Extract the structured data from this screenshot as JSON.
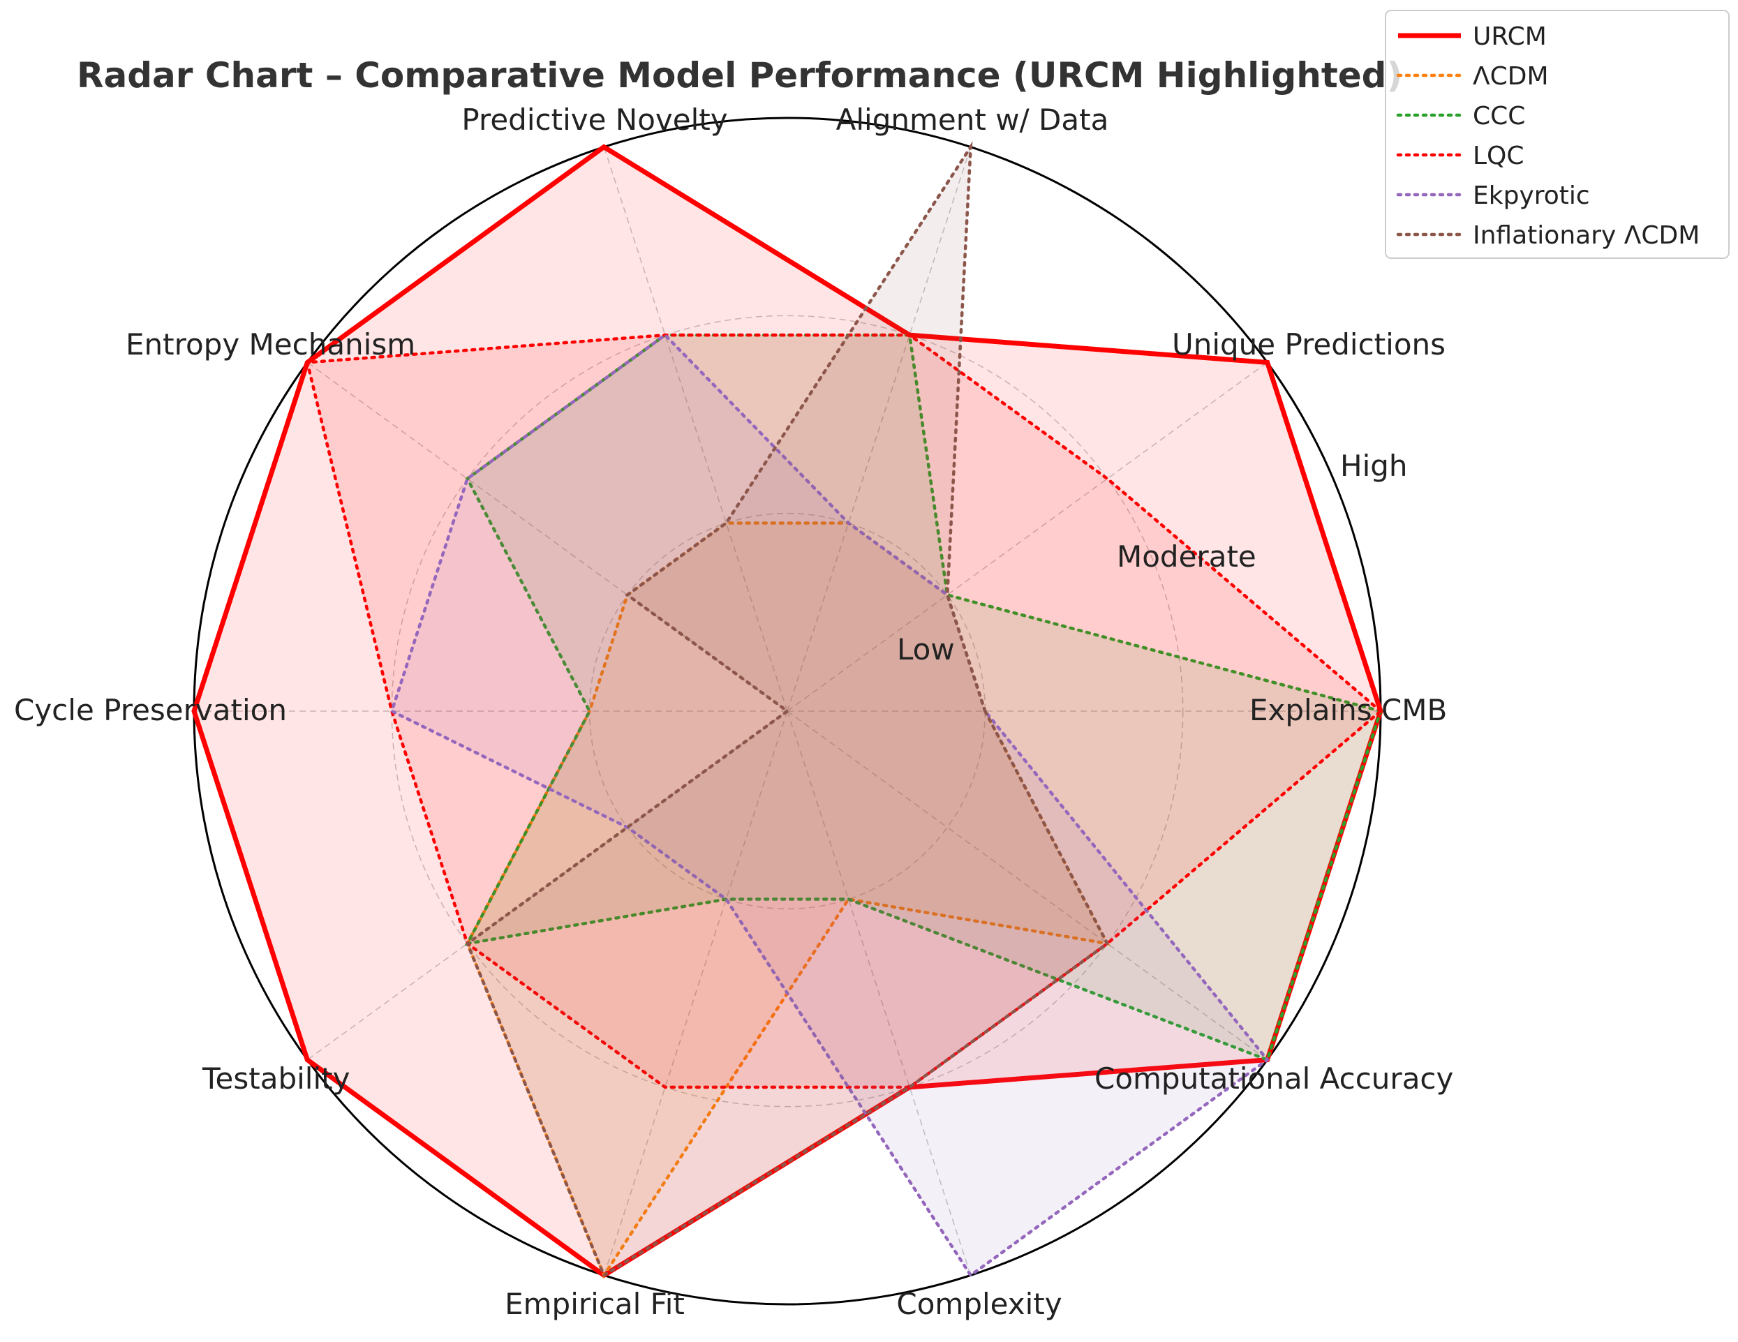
{
  "chart_data": {
    "type": "radar",
    "title": "Radar Chart – Comparative Model Performance (URCM Highlighted)",
    "axes": [
      "Explains CMB",
      "Unique Predictions",
      "Alignment w/ Data",
      "Predictive Novelty",
      "Entropy Mechanism",
      "Cycle Preservation",
      "Testability",
      "Empirical Fit",
      "Complexity",
      "Computational Accuracy"
    ],
    "rmax": 3,
    "ring_values": [
      1,
      2,
      3
    ],
    "ring_labels": [
      "Low",
      "Moderate",
      "High"
    ],
    "grid": true,
    "legend_position": "top-right",
    "series": [
      {
        "name": "URCM",
        "values": [
          3,
          3,
          2,
          3,
          3,
          3,
          3,
          3,
          2,
          3
        ],
        "color": "#ff0000",
        "style": "solid",
        "fill_opacity": 0.1
      },
      {
        "name": "ΛCDM",
        "values": [
          1,
          1,
          1,
          1,
          1,
          1,
          2,
          3,
          1,
          2
        ],
        "color": "#ff7f0e",
        "style": "dotted",
        "fill_opacity": 0.1
      },
      {
        "name": "CCC",
        "values": [
          3,
          1,
          2,
          2,
          2,
          1,
          2,
          1,
          1,
          3
        ],
        "color": "#2ca02c",
        "style": "dotted",
        "fill_opacity": 0.1
      },
      {
        "name": "LQC",
        "values": [
          3,
          2,
          2,
          2,
          3,
          2,
          2,
          2,
          2,
          2
        ],
        "color": "#ff0000",
        "style": "dotted",
        "fill_opacity": 0.1
      },
      {
        "name": "Ekpyrotic",
        "values": [
          1,
          1,
          1,
          2,
          2,
          2,
          1,
          1,
          3,
          3
        ],
        "color": "#9467bd",
        "style": "dotted",
        "fill_opacity": 0.1
      },
      {
        "name": "Inflationary ΛCDM",
        "values": [
          1,
          1,
          3,
          1,
          1,
          0,
          2,
          3,
          2,
          2
        ],
        "color": "#8c564b",
        "style": "dotted",
        "fill_opacity": 0.1
      }
    ]
  }
}
